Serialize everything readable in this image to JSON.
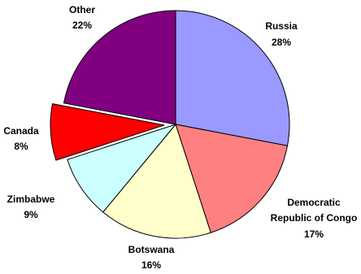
{
  "chart_data": {
    "type": "pie",
    "title": "",
    "start": "12 o'clock",
    "direction": "clockwise",
    "exploded_slice": "Canada",
    "legend": "none",
    "slices": [
      {
        "name": "Russia",
        "label": "Russia",
        "percent_label": "28%",
        "value": 28,
        "color": "#9999ff"
      },
      {
        "name": "Democratic Republic of Congo",
        "label": "Democratic Republic of Congo",
        "percent_label": "17%",
        "value": 17,
        "color": "#ff8080"
      },
      {
        "name": "Botswana",
        "label": "Botswana",
        "percent_label": "16%",
        "value": 16,
        "color": "#ffffcc"
      },
      {
        "name": "Zimbabwe",
        "label": "Zimbabwe",
        "percent_label": "9%",
        "value": 9,
        "color": "#ccffff"
      },
      {
        "name": "Canada",
        "label": "Canada",
        "percent_label": "8%",
        "value": 8,
        "color": "#ff0000"
      },
      {
        "name": "Other",
        "label": "Other",
        "percent_label": "22%",
        "value": 22,
        "color": "#800080"
      }
    ]
  }
}
